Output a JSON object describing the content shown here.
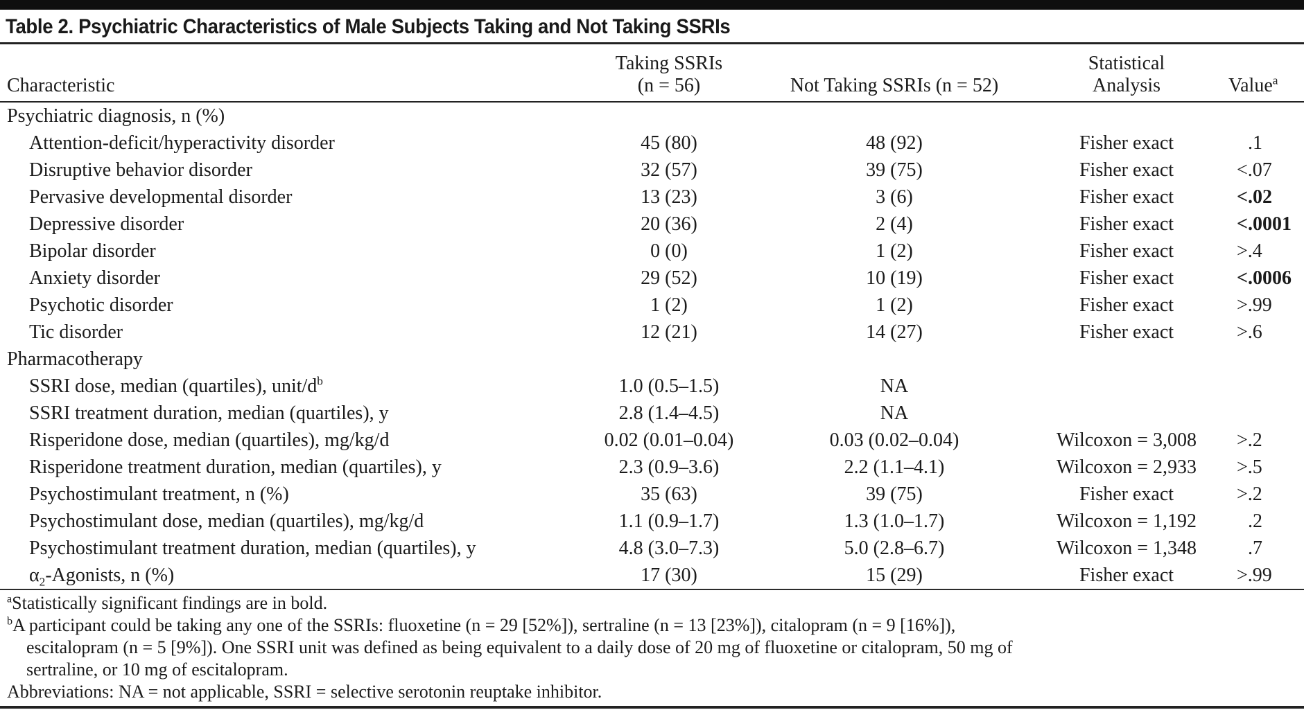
{
  "page": {
    "title": "Table 2. Psychiatric Characteristics of Male Subjects Taking and Not Taking SSRIs"
  },
  "header": {
    "characteristic": "Characteristic",
    "taking_line1": "Taking SSRIs",
    "taking_line2": "(n = 56)",
    "not_taking": "Not Taking SSRIs (n = 52)",
    "analysis_line1": "Statistical",
    "analysis_line2": "Analysis",
    "value": "Value",
    "value_sup": "a"
  },
  "sections": [
    {
      "header": "Psychiatric diagnosis, n (%)",
      "rows": [
        {
          "label": [
            {
              "text": "Attention-deficit/hyperactivity disorder"
            }
          ],
          "taking": "45 (80)",
          "not_taking": "48 (92)",
          "analysis": "Fisher exact",
          "value": ".1",
          "value_bold": false
        },
        {
          "label": [
            {
              "text": "Disruptive behavior disorder"
            }
          ],
          "taking": "32 (57)",
          "not_taking": "39 (75)",
          "analysis": "Fisher exact",
          "value": "<.07",
          "value_bold": false
        },
        {
          "label": [
            {
              "text": "Pervasive developmental disorder"
            }
          ],
          "taking": "13 (23)",
          "not_taking": "3 (6)",
          "analysis": "Fisher exact",
          "value": "<.02",
          "value_bold": true
        },
        {
          "label": [
            {
              "text": "Depressive disorder"
            }
          ],
          "taking": "20 (36)",
          "not_taking": "2 (4)",
          "analysis": "Fisher exact",
          "value": "<.0001",
          "value_bold": true
        },
        {
          "label": [
            {
              "text": "Bipolar disorder"
            }
          ],
          "taking": "0 (0)",
          "not_taking": "1 (2)",
          "analysis": "Fisher exact",
          "value": ">.4",
          "value_bold": false
        },
        {
          "label": [
            {
              "text": "Anxiety disorder"
            }
          ],
          "taking": "29 (52)",
          "not_taking": "10 (19)",
          "analysis": "Fisher exact",
          "value": "<.0006",
          "value_bold": true
        },
        {
          "label": [
            {
              "text": "Psychotic disorder"
            }
          ],
          "taking": "1 (2)",
          "not_taking": "1 (2)",
          "analysis": "Fisher exact",
          "value": ">.99",
          "value_bold": false
        },
        {
          "label": [
            {
              "text": "Tic disorder"
            }
          ],
          "taking": "12 (21)",
          "not_taking": "14 (27)",
          "analysis": "Fisher exact",
          "value": ">.6",
          "value_bold": false
        }
      ]
    },
    {
      "header": "Pharmacotherapy",
      "rows": [
        {
          "label": [
            {
              "text": "SSRI dose, median (quartiles), unit/d"
            },
            {
              "text": "b",
              "script": "sup"
            }
          ],
          "taking": "1.0 (0.5–1.5)",
          "not_taking": "NA",
          "analysis": "",
          "value": "",
          "value_bold": false
        },
        {
          "label": [
            {
              "text": "SSRI treatment duration, median (quartiles), y"
            }
          ],
          "taking": "2.8 (1.4–4.5)",
          "not_taking": "NA",
          "analysis": "",
          "value": "",
          "value_bold": false
        },
        {
          "label": [
            {
              "text": "Risperidone dose, median (quartiles), mg/kg/d"
            }
          ],
          "taking": "0.02 (0.01–0.04)",
          "not_taking": "0.03 (0.02–0.04)",
          "analysis": "Wilcoxon = 3,008",
          "value": ">.2",
          "value_bold": false
        },
        {
          "label": [
            {
              "text": "Risperidone treatment duration, median (quartiles), y"
            }
          ],
          "taking": "2.3 (0.9–3.6)",
          "not_taking": "2.2 (1.1–4.1)",
          "analysis": "Wilcoxon = 2,933",
          "value": ">.5",
          "value_bold": false
        },
        {
          "label": [
            {
              "text": "Psychostimulant treatment, n (%)"
            }
          ],
          "taking": "35 (63)",
          "not_taking": "39 (75)",
          "analysis": "Fisher exact",
          "value": ">.2",
          "value_bold": false
        },
        {
          "label": [
            {
              "text": "Psychostimulant dose, median (quartiles), mg/kg/d"
            }
          ],
          "taking": "1.1 (0.9–1.7)",
          "not_taking": "1.3 (1.0–1.7)",
          "analysis": "Wilcoxon = 1,192",
          "value": ".2",
          "value_bold": false
        },
        {
          "label": [
            {
              "text": "Psychostimulant treatment duration, median (quartiles), y"
            }
          ],
          "taking": "4.8 (3.0–7.3)",
          "not_taking": "5.0 (2.8–6.7)",
          "analysis": "Wilcoxon = 1,348",
          "value": ".7",
          "value_bold": false
        },
        {
          "label": [
            {
              "text": "α"
            },
            {
              "text": "2",
              "script": "sub"
            },
            {
              "text": "-Agonists, n (%)"
            }
          ],
          "taking": "17 (30)",
          "not_taking": "15 (29)",
          "analysis": "Fisher exact",
          "value": ">.99",
          "value_bold": false
        }
      ]
    }
  ],
  "footnotes": [
    {
      "marker": "a",
      "lines": [
        "Statistically significant findings are in bold."
      ]
    },
    {
      "marker": "b",
      "lines": [
        "A participant could be taking any one of the SSRIs: fluoxetine (n = 29 [52%]), sertraline (n = 13 [23%]), citalopram (n = 9 [16%]),",
        "escitalopram (n = 5 [9%]). One SSRI unit was defined as being equivalent to a daily dose of 20 mg of fluoxetine or citalopram, 50 mg of",
        "sertraline, or 10 mg of escitalopram."
      ]
    },
    {
      "marker": "",
      "lines": [
        "Abbreviations: NA = not applicable, SSRI = selective serotonin reuptake inhibitor."
      ]
    }
  ]
}
